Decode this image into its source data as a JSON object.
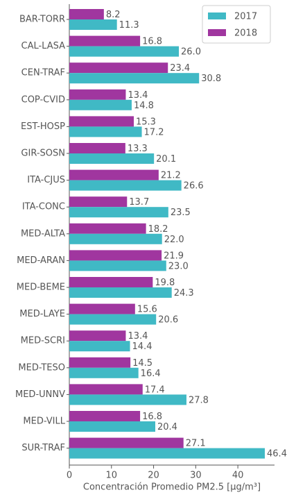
{
  "chart_data": {
    "type": "barh",
    "xlabel": "Concentración Promedio PM2.5 [μg/m³]",
    "categories": [
      "BAR-TORR",
      "CAL-LASA",
      "CEN-TRAF",
      "COP-CVID",
      "EST-HOSP",
      "GIR-SOSN",
      "ITA-CJUS",
      "ITA-CONC",
      "MED-ALTA",
      "MED-ARAN",
      "MED-BEME",
      "MED-LAYE",
      "MED-SCRI",
      "MED-TESO",
      "MED-UNNV",
      "MED-VILL",
      "SUR-TRAF"
    ],
    "series": [
      {
        "name": "2017",
        "color": "#40b9c5",
        "values": [
          11.3,
          26.0,
          30.8,
          14.8,
          17.2,
          20.1,
          26.6,
          23.5,
          22.0,
          23.0,
          24.3,
          20.6,
          14.4,
          16.4,
          27.8,
          20.4,
          46.4
        ],
        "value_labels": [
          "11.3",
          "26.0",
          "30.8",
          "14.8",
          "17.2",
          "20.1",
          "26.6",
          "23.5",
          "22.0",
          "23.0",
          "24.3",
          "20.6",
          "14.4",
          "16.4",
          "27.8",
          "20.4",
          "46.4"
        ]
      },
      {
        "name": "2018",
        "color": "#a0369f",
        "values": [
          8.2,
          16.8,
          23.4,
          13.4,
          15.3,
          13.3,
          21.2,
          13.7,
          18.2,
          21.9,
          19.8,
          15.6,
          13.4,
          14.5,
          17.4,
          16.8,
          27.1
        ],
        "value_labels": [
          "8.2",
          "16.8",
          "23.4",
          "13.4",
          "15.3",
          "13.3",
          "21.2",
          "13.7",
          "18.2",
          "21.9",
          "19.8",
          "15.6",
          "13.4",
          "14.5",
          "17.4",
          "16.8",
          "27.1"
        ]
      }
    ],
    "xlim": [
      0,
      48.7
    ],
    "xticks": [
      0,
      10,
      20,
      30,
      40
    ],
    "grid": false,
    "legend": "upper right"
  }
}
